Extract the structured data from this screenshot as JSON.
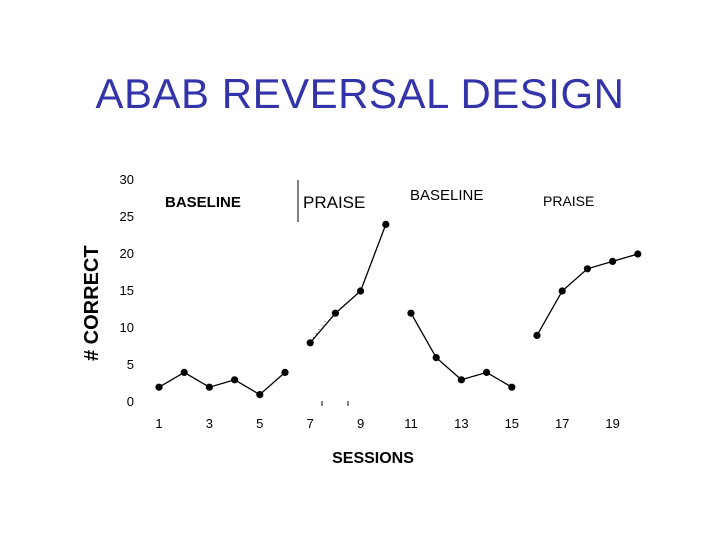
{
  "slide": {
    "title": "ABAB  REVERSAL DESIGN"
  },
  "chart_data": {
    "type": "line",
    "title": "",
    "xlabel": "SESSIONS",
    "ylabel": "# CORRECT",
    "xlim": [
      0,
      20
    ],
    "ylim": [
      0,
      30
    ],
    "x_ticks": [
      "1",
      "3",
      "5",
      "7",
      "9",
      "11",
      "13",
      "15",
      "17",
      "19"
    ],
    "y_ticks": [
      "0",
      "5",
      "10",
      "15",
      "20",
      "25",
      "30"
    ],
    "grid": false,
    "phases": [
      {
        "label": "BASELINE"
      },
      {
        "label": "PRAISE"
      },
      {
        "label": "BASELINE"
      },
      {
        "label": "PRAISE"
      }
    ],
    "series": [
      {
        "x": [
          1,
          2,
          3,
          4,
          5,
          6
        ],
        "y": [
          2,
          4,
          2,
          3,
          1,
          4
        ]
      },
      {
        "x": [
          7,
          8,
          9,
          10
        ],
        "y": [
          8,
          12,
          15,
          24
        ]
      },
      {
        "x": [
          11,
          12,
          13,
          14,
          15
        ],
        "y": [
          12,
          6,
          3,
          4,
          2
        ]
      },
      {
        "x": [
          16,
          17,
          18,
          19,
          20
        ],
        "y": [
          9,
          15,
          18,
          19,
          20
        ]
      }
    ],
    "color": "#000000"
  }
}
